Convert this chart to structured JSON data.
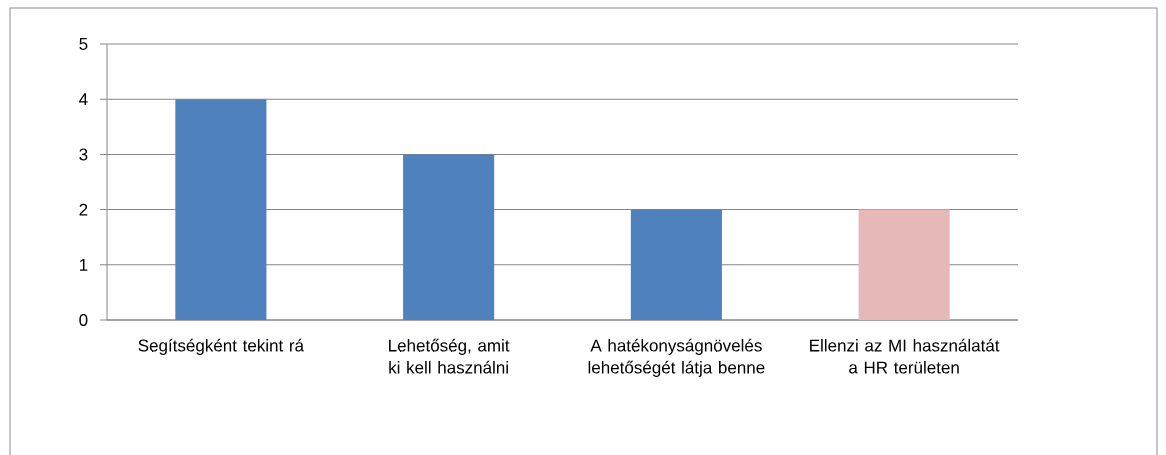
{
  "chart_data": {
    "type": "bar",
    "categories": [
      "Segítségként tekint rá",
      "Lehetőség, amit ki kell használni",
      "A hatékonyságnövelés lehetőségét látja benne",
      "Ellenzi az MI használatát a HR területen"
    ],
    "values": [
      4,
      3,
      2,
      2
    ],
    "colors": [
      "#4f81bd",
      "#4f81bd",
      "#4f81bd",
      "#e6b9b8"
    ],
    "ylim": [
      0,
      5
    ],
    "yticks": [
      0,
      1,
      2,
      3,
      4,
      5
    ],
    "grid": "y"
  }
}
